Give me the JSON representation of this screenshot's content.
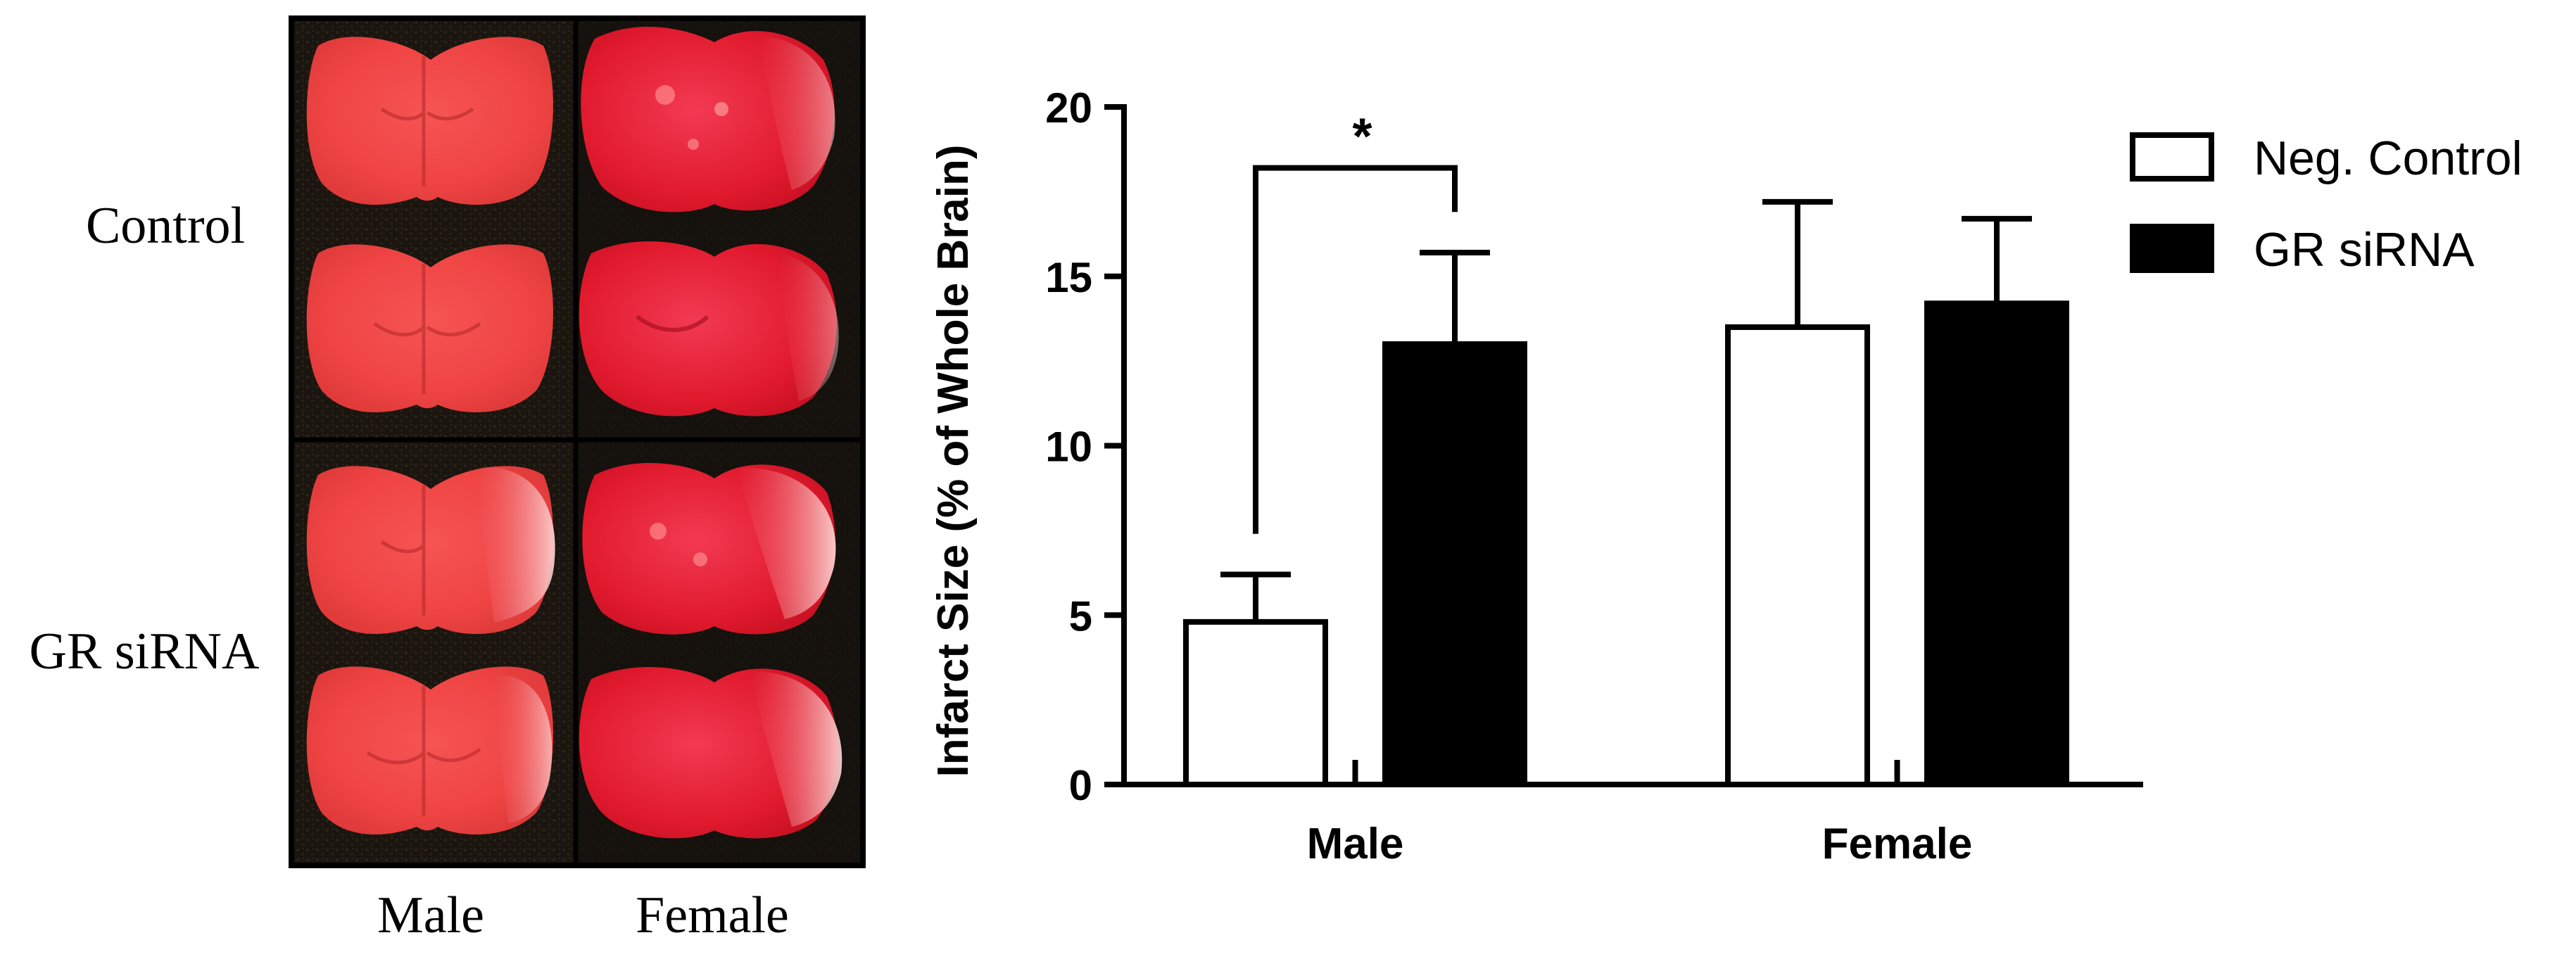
{
  "photo_panel": {
    "row_labels": [
      "Control",
      "GR siRNA"
    ],
    "column_labels": [
      "Male",
      "Female"
    ]
  },
  "chart_data": {
    "type": "bar",
    "categories": [
      "Male",
      "Female"
    ],
    "series": [
      {
        "name": "Neg. Control",
        "values": [
          4.8,
          13.5
        ],
        "errors": [
          1.4,
          3.7
        ],
        "color": "#ffffff"
      },
      {
        "name": "GR siRNA",
        "values": [
          13.0,
          14.2
        ],
        "errors": [
          2.7,
          2.5
        ],
        "color": "#000000"
      }
    ],
    "ylabel": "Infarct Size (% of Whole Brain)",
    "xlabel": "",
    "ylim": [
      0,
      20
    ],
    "yticks": [
      0,
      5,
      10,
      15,
      20
    ],
    "grid": false,
    "legend_position": "top-right",
    "annotations": [
      {
        "text": "*",
        "category": "Male",
        "between_series": [
          "Neg. Control",
          "GR siRNA"
        ]
      }
    ]
  },
  "colors": {
    "tissue_light": "#f24a4a",
    "tissue_bright": "#e8142c",
    "mount_background": "#1a140e",
    "ink": "#000000"
  }
}
